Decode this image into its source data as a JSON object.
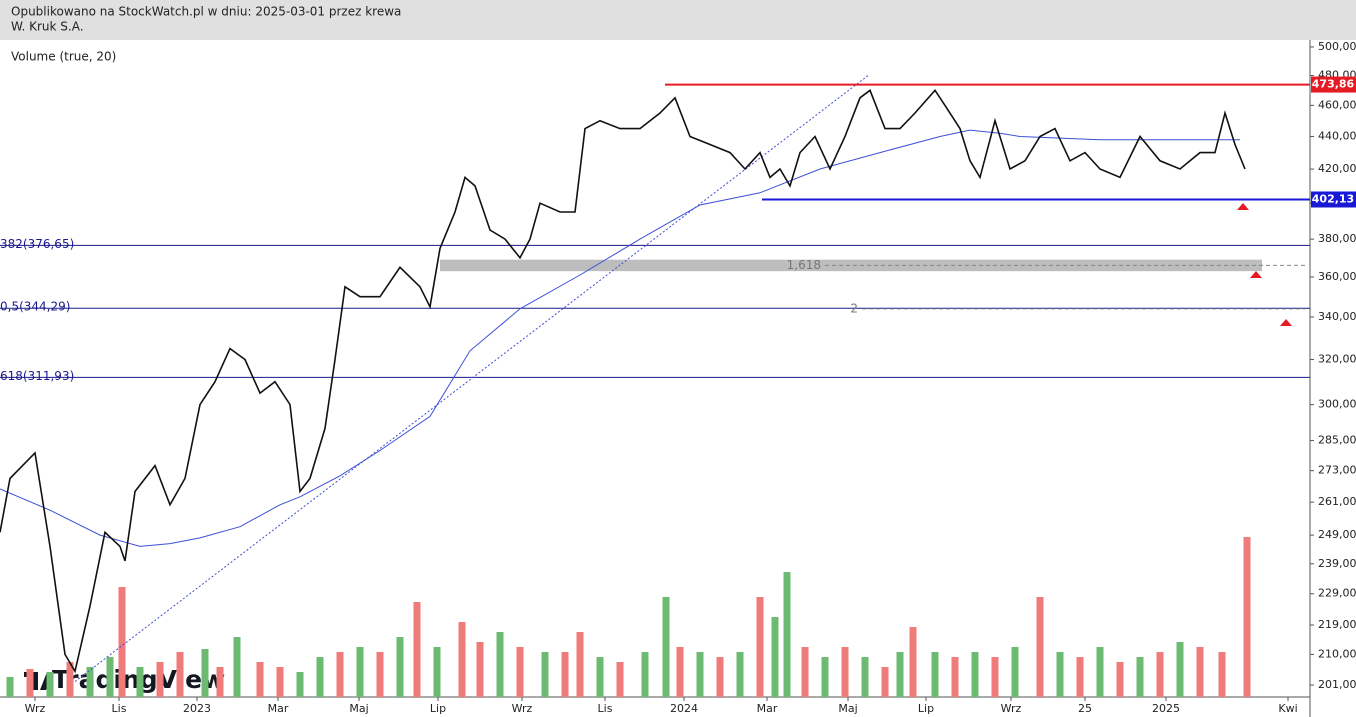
{
  "chart_data": {
    "type": "line",
    "subtitle": "Opublikowano na StockWatch.pl w dniu: 2025-03-01 przez krewa",
    "title": "W. Kruk S.A.",
    "watermark": "TradingView",
    "log_scale": true,
    "xlim": [
      0,
      131
    ],
    "xticks": [
      {
        "value": 3.5,
        "label": "Wrz"
      },
      {
        "value": 11.9,
        "label": "Lis"
      },
      {
        "value": 19.7,
        "label": "2023"
      },
      {
        "value": 27.8,
        "label": "Mar"
      },
      {
        "value": 35.9,
        "label": "Maj"
      },
      {
        "value": 43.8,
        "label": "Lip"
      },
      {
        "value": 52.2,
        "label": "Wrz"
      },
      {
        "value": 60.5,
        "label": "Lis"
      },
      {
        "value": 68.4,
        "label": "2024"
      },
      {
        "value": 76.7,
        "label": "Mar"
      },
      {
        "value": 84.8,
        "label": "Maj"
      },
      {
        "value": 92.6,
        "label": "Lip"
      },
      {
        "value": 101.1,
        "label": "Wrz"
      },
      {
        "value": 108.5,
        "label": "25"
      },
      {
        "value": 116.6,
        "label": "2025"
      },
      {
        "value": 128.8,
        "label": "Kwi"
      }
    ],
    "ylim": [
      197.6,
      505
    ],
    "yticks": [
      {
        "value": 201,
        "label": "201,00"
      },
      {
        "value": 210,
        "label": "210,00"
      },
      {
        "value": 219,
        "label": "219,00"
      },
      {
        "value": 229,
        "label": "229,00"
      },
      {
        "value": 239,
        "label": "239,00"
      },
      {
        "value": 249,
        "label": "249,00"
      },
      {
        "value": 261,
        "label": "261,00"
      },
      {
        "value": 273,
        "label": "273,00"
      },
      {
        "value": 285,
        "label": "285,00"
      },
      {
        "value": 300,
        "label": "300,00"
      },
      {
        "value": 320,
        "label": "320,00"
      },
      {
        "value": 340,
        "label": "340,00"
      },
      {
        "value": 360,
        "label": "360,00"
      },
      {
        "value": 380,
        "label": "380,00"
      },
      {
        "value": 400,
        "label": "400,00"
      },
      {
        "value": 420,
        "label": "420,00"
      },
      {
        "value": 440,
        "label": "440,00"
      },
      {
        "value": 460,
        "label": "460,00"
      },
      {
        "value": 480,
        "label": "480,00"
      },
      {
        "value": 500,
        "label": "500,00"
      }
    ],
    "series": [
      {
        "color": "#111111",
        "x": [
          0,
          1,
          3.5,
          5,
          6.5,
          7.5,
          9,
          10.5,
          12,
          12.5,
          13.5,
          15.5,
          17,
          18.5,
          20,
          21.5,
          23,
          24.5,
          26,
          27.5,
          29,
          30,
          31,
          32.5,
          33.5,
          34.5,
          36,
          38,
          40,
          42,
          43,
          44,
          45.5,
          46.5,
          47.5,
          49,
          50.5,
          52,
          53,
          54,
          56,
          57.5,
          58.5,
          60,
          62,
          64,
          66,
          67.5,
          69,
          71,
          73,
          74.5,
          76,
          77,
          78,
          79,
          80,
          81.5,
          83,
          84.5,
          86,
          87,
          88.5,
          90,
          91.5,
          93.5,
          94.5,
          96,
          97,
          98,
          99.5,
          101,
          102.5,
          104,
          105.5,
          107,
          108.5,
          110,
          112,
          114,
          116,
          118,
          120,
          121.5,
          122.5,
          123.5,
          124.5
        ],
        "values": [
          250,
          270,
          280,
          245,
          210,
          205,
          225,
          250,
          245,
          240,
          265,
          275,
          260,
          270,
          300,
          310,
          325,
          320,
          305,
          310,
          300,
          265,
          270,
          290,
          320,
          355,
          350,
          350,
          365,
          355,
          345,
          375,
          395,
          415,
          410,
          385,
          380,
          370,
          380,
          400,
          395,
          395,
          445,
          450,
          445,
          445,
          455,
          465,
          440,
          435,
          430,
          420,
          430,
          415,
          420,
          410,
          430,
          440,
          420,
          440,
          465,
          470,
          445,
          445,
          455,
          470,
          460,
          445,
          425,
          415,
          450,
          420,
          425,
          440,
          445,
          425,
          430,
          420,
          415,
          440,
          425,
          420,
          430,
          430,
          455,
          435,
          420
        ]
      },
      {
        "color": "#3d4fd6",
        "x": [
          0,
          5,
          10,
          14,
          17,
          20,
          24,
          28,
          30,
          34,
          38,
          43,
          47,
          52,
          58,
          64,
          70,
          76,
          82,
          88,
          94,
          97,
          100,
          102,
          110,
          124
        ],
        "values": [
          266,
          258,
          249,
          245,
          246,
          248,
          252,
          260,
          263,
          271,
          281,
          295,
          324,
          344,
          361,
          380,
          399,
          406,
          420,
          430,
          440,
          444,
          442,
          440,
          438,
          438
        ]
      }
    ],
    "trend_line": {
      "color": "#3d4fd6",
      "x": [
        7.5,
        86.8
      ],
      "values": [
        202,
        480
      ]
    },
    "levels": [
      {
        "value": 473.86,
        "label": "473,86",
        "color": "#e51c23",
        "x_start": 66.5
      },
      {
        "value": 402.13,
        "label": "402,13",
        "color": "#1a1ad6",
        "x_start": 76.2
      }
    ],
    "fib_color": "#1a1a8c",
    "fib_levels": [
      {
        "value": 376.65,
        "label": "382(376,65)"
      },
      {
        "value": 344.29,
        "label": "0,5(344,29)"
      },
      {
        "value": 311.93,
        "label": "618(311,93)"
      }
    ],
    "zone": {
      "range": [
        363,
        369
      ],
      "x": [
        44,
        126.2
      ],
      "color": "#bdbdbd"
    },
    "extensions": [
      {
        "value": 366,
        "label": "1,618",
        "x": [
          82.5,
          130.5
        ]
      },
      {
        "value": 344,
        "label": "2",
        "x": [
          86.2,
          130.5
        ]
      }
    ],
    "volume": {
      "title": "Volume (true, 20)",
      "ylim": [
        0,
        160
      ],
      "up_color": "#6dbb72",
      "down_color": "#ef7b7b",
      "x": [
        1,
        3,
        5,
        7,
        9,
        11,
        12.2,
        14,
        16,
        18,
        20.5,
        22,
        23.7,
        26,
        28,
        30,
        32,
        34,
        36,
        38,
        40,
        41.7,
        43.7,
        46.2,
        48,
        50,
        52,
        54.5,
        56.5,
        58,
        60,
        62,
        64.5,
        66.6,
        68,
        70,
        72,
        74,
        76,
        77.5,
        78.7,
        80.5,
        82.5,
        84.5,
        86.5,
        88.5,
        90,
        91.3,
        93.5,
        95.5,
        97.5,
        99.5,
        101.5,
        104,
        106,
        108,
        110,
        112,
        114,
        116,
        118,
        120,
        122.2,
        124.7
      ],
      "values": [
        20,
        28,
        25,
        35,
        30,
        40,
        110,
        30,
        35,
        45,
        48,
        30,
        60,
        35,
        30,
        25,
        40,
        45,
        50,
        45,
        60,
        95,
        50,
        75,
        55,
        65,
        50,
        45,
        45,
        65,
        40,
        35,
        45,
        100,
        50,
        45,
        40,
        45,
        100,
        80,
        125,
        50,
        40,
        50,
        40,
        30,
        45,
        70,
        45,
        40,
        45,
        40,
        50,
        100,
        45,
        40,
        50,
        35,
        40,
        45,
        55,
        50,
        45,
        160
      ],
      "up": [
        true,
        false,
        true,
        false,
        true,
        true,
        false,
        true,
        false,
        false,
        true,
        false,
        true,
        false,
        false,
        true,
        true,
        false,
        true,
        false,
        true,
        false,
        true,
        false,
        false,
        true,
        false,
        true,
        false,
        false,
        true,
        false,
        true,
        true,
        false,
        true,
        false,
        true,
        false,
        true,
        true,
        false,
        true,
        false,
        true,
        false,
        true,
        false,
        true,
        false,
        true,
        false,
        true,
        false,
        true,
        false,
        true,
        false,
        true,
        false,
        true,
        false,
        false,
        false
      ]
    }
  }
}
